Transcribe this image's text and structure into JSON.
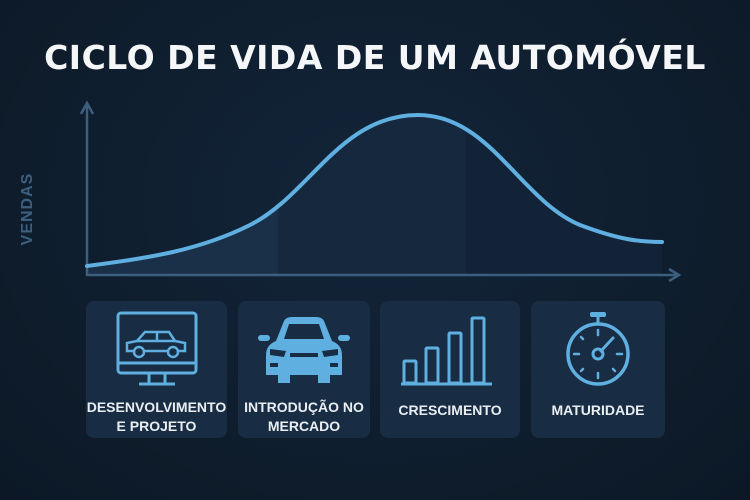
{
  "title": "CICLO DE VIDA DE UM AUTOMÓVEL",
  "chart": {
    "ylabel": "VENDAS",
    "curve_color": "#5fb0e0",
    "axis_color": "#3c5f80"
  },
  "stages": [
    {
      "line1": "DESENVOLVIMENTO",
      "line2": "E PROJETO",
      "icon": "monitor-car-icon"
    },
    {
      "line1": "INTRODUÇÃO NO",
      "line2": "MERCADO",
      "icon": "car-front-icon"
    },
    {
      "line1": "CRESCIMENTO",
      "line2": "",
      "icon": "bar-chart-icon"
    },
    {
      "line1": "MATURIDADE",
      "line2": "",
      "icon": "stopwatch-icon"
    }
  ]
}
